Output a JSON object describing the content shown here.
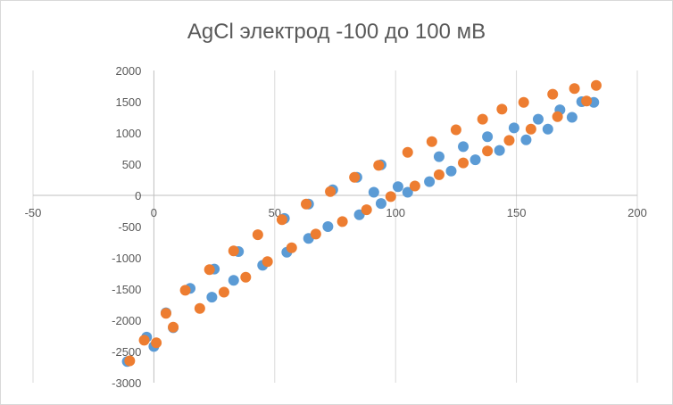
{
  "chart_data": {
    "type": "scatter",
    "title": "AgCl электрод  -100 до 100 мВ",
    "xlabel": "",
    "ylabel": "",
    "xlim": [
      -50,
      200
    ],
    "ylim": [
      -3000,
      2000
    ],
    "xticks": [
      "-50",
      "0",
      "50",
      "100",
      "150",
      "200"
    ],
    "yticks": [
      "2000",
      "1500",
      "1000",
      "500",
      "0",
      "-500",
      "-1000",
      "-1500",
      "-2000",
      "-2500",
      "-3000"
    ],
    "grid": "vertical",
    "legend": "none",
    "series": [
      {
        "color": "#5b9bd5",
        "points": [
          [
            -11,
            -2660
          ],
          [
            -3,
            -2270
          ],
          [
            0,
            -2420
          ],
          [
            5,
            -1880
          ],
          [
            8,
            -2120
          ],
          [
            15,
            -1490
          ],
          [
            24,
            -1630
          ],
          [
            25,
            -1180
          ],
          [
            33,
            -1360
          ],
          [
            35,
            -900
          ],
          [
            45,
            -1120
          ],
          [
            54,
            -370
          ],
          [
            55,
            -910
          ],
          [
            64,
            -140
          ],
          [
            64,
            -690
          ],
          [
            74,
            90
          ],
          [
            72,
            -500
          ],
          [
            84,
            290
          ],
          [
            85,
            -310
          ],
          [
            94,
            490
          ],
          [
            91,
            50
          ],
          [
            94,
            -130
          ],
          [
            101,
            140
          ],
          [
            105,
            50
          ],
          [
            114,
            220
          ],
          [
            118,
            620
          ],
          [
            123,
            390
          ],
          [
            128,
            780
          ],
          [
            133,
            570
          ],
          [
            138,
            940
          ],
          [
            143,
            720
          ],
          [
            149,
            1080
          ],
          [
            154,
            890
          ],
          [
            159,
            1220
          ],
          [
            163,
            1060
          ],
          [
            168,
            1370
          ],
          [
            173,
            1250
          ],
          [
            177,
            1500
          ],
          [
            182,
            1490
          ]
        ]
      },
      {
        "color": "#ed7d31",
        "points": [
          [
            -10,
            -2650
          ],
          [
            -4,
            -2320
          ],
          [
            1,
            -2360
          ],
          [
            5,
            -1890
          ],
          [
            8,
            -2110
          ],
          [
            13,
            -1520
          ],
          [
            19,
            -1810
          ],
          [
            23,
            -1190
          ],
          [
            29,
            -1550
          ],
          [
            33,
            -890
          ],
          [
            38,
            -1310
          ],
          [
            43,
            -630
          ],
          [
            47,
            -1060
          ],
          [
            53,
            -390
          ],
          [
            57,
            -840
          ],
          [
            63,
            -140
          ],
          [
            67,
            -620
          ],
          [
            73,
            60
          ],
          [
            78,
            -420
          ],
          [
            83,
            290
          ],
          [
            88,
            -230
          ],
          [
            93,
            480
          ],
          [
            98,
            -20
          ],
          [
            105,
            690
          ],
          [
            108,
            150
          ],
          [
            115,
            860
          ],
          [
            118,
            330
          ],
          [
            125,
            1050
          ],
          [
            128,
            520
          ],
          [
            136,
            1220
          ],
          [
            138,
            710
          ],
          [
            144,
            1380
          ],
          [
            147,
            880
          ],
          [
            153,
            1490
          ],
          [
            156,
            1060
          ],
          [
            165,
            1620
          ],
          [
            167,
            1260
          ],
          [
            174,
            1710
          ],
          [
            179,
            1510
          ],
          [
            183,
            1760
          ]
        ]
      }
    ]
  }
}
